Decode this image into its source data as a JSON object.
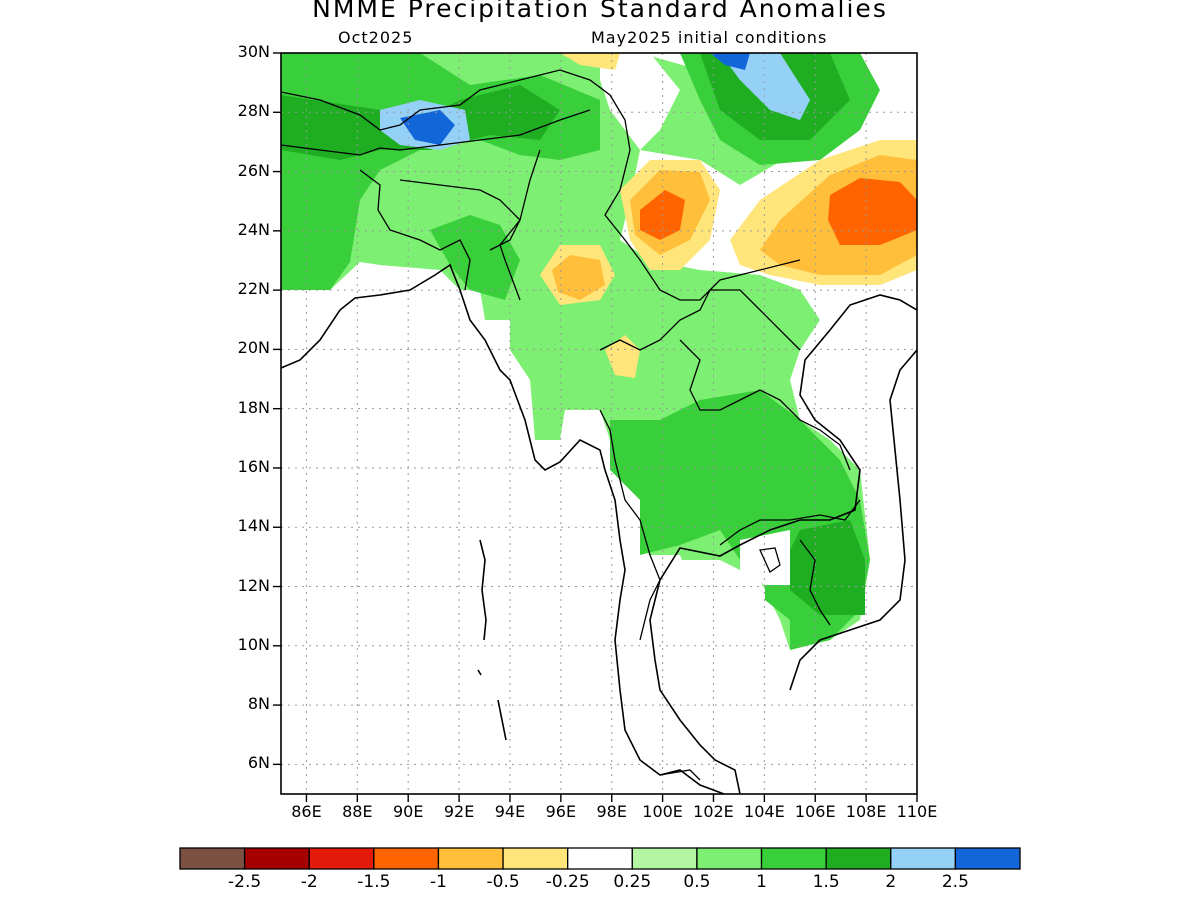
{
  "map": {
    "title": "NMME Precipitation Standard Anomalies",
    "subtitle_left": "Oct2025",
    "subtitle_right": "May2025 initial conditions",
    "lon_range": [
      85,
      110
    ],
    "lat_range": [
      5,
      30
    ],
    "lat_labels": [
      "30N",
      "28N",
      "26N",
      "24N",
      "22N",
      "20N",
      "18N",
      "16N",
      "14N",
      "12N",
      "10N",
      "8N",
      "6N"
    ],
    "lon_labels": [
      "86E",
      "88E",
      "90E",
      "92E",
      "94E",
      "96E",
      "98E",
      "100E",
      "102E",
      "104E",
      "106E",
      "108E",
      "110E"
    ]
  },
  "colorbar": {
    "colors": [
      "#7b5142",
      "#a60000",
      "#e41b0a",
      "#ff6400",
      "#ffbf3a",
      "#ffe57a",
      "#ffffff",
      "#b4f5a3",
      "#7def72",
      "#38cf3a",
      "#1fad22",
      "#95d1f7",
      "#1266d8"
    ],
    "labels": [
      "-2.5",
      "-2",
      "-1.5",
      "-1",
      "-0.5",
      "-0.25",
      "0.25",
      "0.5",
      "1",
      "1.5",
      "2",
      "2.5"
    ]
  }
}
